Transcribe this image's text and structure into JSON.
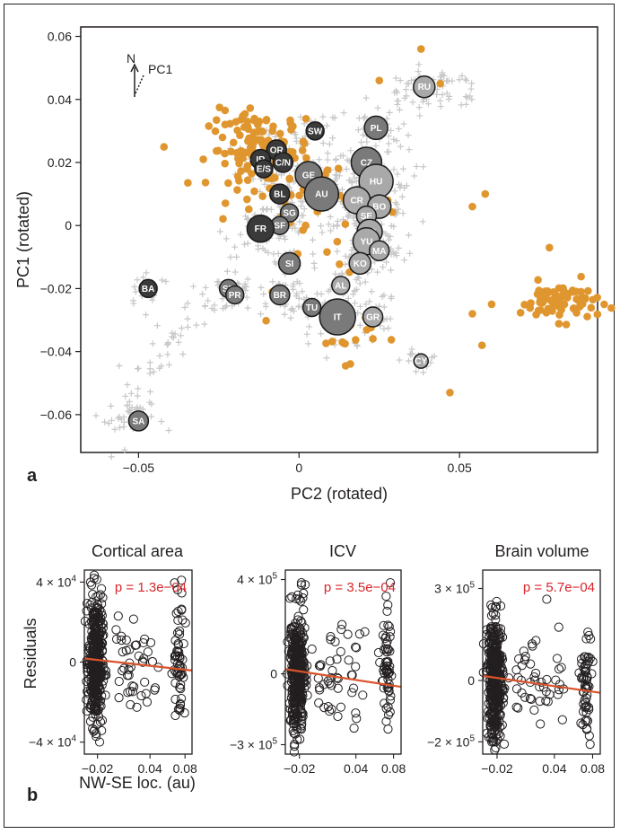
{
  "colors": {
    "cross": "#c8c8c8",
    "orange": "#e0962e",
    "axis": "#231f20",
    "fit_line": "#d9542b",
    "pvalue": "#d7262b",
    "pop_light": "#a9a9a9",
    "pop_mid": "#7a7a7a",
    "pop_dark": "#3a3a3a"
  },
  "panel_labels": {
    "a": "a",
    "b": "b"
  },
  "compass": {
    "north": "N",
    "pc1": "PC1"
  },
  "chart_data": [
    {
      "type": "scatter",
      "id": "pca",
      "xlabel": "PC2 (rotated)",
      "ylabel": "PC1 (rotated)",
      "xlim": [
        -0.068,
        0.093
      ],
      "ylim": [
        -0.072,
        0.063
      ],
      "xticks": [
        -0.05,
        0,
        0.05
      ],
      "xtick_labels": [
        "−0.05",
        "0",
        "0.05"
      ],
      "yticks": [
        -0.06,
        -0.04,
        -0.02,
        0,
        0.02,
        0.04,
        0.06
      ],
      "ytick_labels": [
        "−0.06",
        "−0.04",
        "−0.02",
        "0",
        "0.02",
        "0.04",
        "0.06"
      ],
      "grid": false,
      "legend": "none",
      "populations": [
        {
          "label": "RU",
          "x": 0.039,
          "y": 0.044,
          "size": 12,
          "shade": "light"
        },
        {
          "label": "SW",
          "x": 0.005,
          "y": 0.03,
          "size": 10,
          "shade": "dark"
        },
        {
          "label": "PL",
          "x": 0.024,
          "y": 0.031,
          "size": 13,
          "shade": "mid"
        },
        {
          "label": "OR",
          "x": -0.007,
          "y": 0.024,
          "size": 11,
          "shade": "dark"
        },
        {
          "label": "IR",
          "x": -0.012,
          "y": 0.021,
          "size": 11,
          "shade": "dark"
        },
        {
          "label": "E/S",
          "x": -0.011,
          "y": 0.018,
          "size": 10,
          "shade": "dark"
        },
        {
          "label": "C/N",
          "x": -0.005,
          "y": 0.02,
          "size": 11,
          "shade": "dark"
        },
        {
          "label": "GE",
          "x": 0.003,
          "y": 0.016,
          "size": 15,
          "shade": "mid"
        },
        {
          "label": "CZ",
          "x": 0.021,
          "y": 0.02,
          "size": 17,
          "shade": "mid"
        },
        {
          "label": "HU",
          "x": 0.024,
          "y": 0.014,
          "size": 19,
          "shade": "light"
        },
        {
          "label": "AU",
          "x": 0.007,
          "y": 0.01,
          "size": 19,
          "shade": "mid"
        },
        {
          "label": "CR",
          "x": 0.018,
          "y": 0.008,
          "size": 15,
          "shade": "light"
        },
        {
          "label": "BO",
          "x": 0.025,
          "y": 0.006,
          "size": 13,
          "shade": "light"
        },
        {
          "label": "BL",
          "x": -0.006,
          "y": 0.01,
          "size": 11,
          "shade": "dark"
        },
        {
          "label": "SG",
          "x": -0.003,
          "y": 0.004,
          "size": 10,
          "shade": "mid"
        },
        {
          "label": "SE",
          "x": 0.021,
          "y": 0.003,
          "size": 11,
          "shade": "light"
        },
        {
          "label": "SF",
          "x": -0.006,
          "y": 0.0,
          "size": 10,
          "shade": "mid"
        },
        {
          "label": "FR",
          "x": -0.012,
          "y": -0.001,
          "size": 15,
          "shade": "dark"
        },
        {
          "label": "RO",
          "x": 0.022,
          "y": -0.002,
          "size": 14,
          "shade": "light"
        },
        {
          "label": "YU",
          "x": 0.021,
          "y": -0.005,
          "size": 15,
          "shade": "light"
        },
        {
          "label": "MA",
          "x": 0.025,
          "y": -0.008,
          "size": 11,
          "shade": "light"
        },
        {
          "label": "SI",
          "x": -0.003,
          "y": -0.012,
          "size": 12,
          "shade": "mid"
        },
        {
          "label": "KO",
          "x": 0.019,
          "y": -0.012,
          "size": 12,
          "shade": "light"
        },
        {
          "label": "BA",
          "x": -0.047,
          "y": -0.02,
          "size": 10,
          "shade": "dark"
        },
        {
          "label": "SP",
          "x": -0.022,
          "y": -0.02,
          "size": 10,
          "shade": "mid"
        },
        {
          "label": "PR",
          "x": -0.02,
          "y": -0.022,
          "size": 10,
          "shade": "mid"
        },
        {
          "label": "BR",
          "x": -0.006,
          "y": -0.022,
          "size": 11,
          "shade": "mid"
        },
        {
          "label": "AL",
          "x": 0.013,
          "y": -0.019,
          "size": 10,
          "shade": "light"
        },
        {
          "label": "TU",
          "x": 0.004,
          "y": -0.026,
          "size": 10,
          "shade": "mid"
        },
        {
          "label": "IT",
          "x": 0.012,
          "y": -0.029,
          "size": 20,
          "shade": "mid"
        },
        {
          "label": "GR",
          "x": 0.023,
          "y": -0.029,
          "size": 11,
          "shade": "light"
        },
        {
          "label": "CY",
          "x": 0.038,
          "y": -0.043,
          "size": 8,
          "shade": "light"
        },
        {
          "label": "SA",
          "x": -0.05,
          "y": -0.062,
          "size": 11,
          "shade": "mid"
        }
      ]
    },
    {
      "type": "scatter",
      "id": "cortical",
      "title": "Cortical area",
      "xlabel": "NW-SE loc. (au)",
      "ylabel": "Residuals",
      "pvalue": "p = 1.3e−04",
      "xlim": [
        -0.035,
        0.088
      ],
      "ylim": [
        -46000,
        46000
      ],
      "xticks": [
        -0.02,
        0.04,
        0.08
      ],
      "xtick_labels": [
        "−0.02",
        "0.04",
        "0.08"
      ],
      "yticks": [
        40000,
        0,
        -40000
      ],
      "ytick_labels": [
        [
          "4 × 10",
          "4"
        ],
        [
          "0",
          ""
        ],
        [
          "−4 × 10",
          "4"
        ]
      ],
      "fit": {
        "x": [
          -0.035,
          0.088
        ],
        "y": [
          1800,
          -4200
        ]
      },
      "spread": 16000
    },
    {
      "type": "scatter",
      "id": "icv",
      "title": "ICV",
      "xlabel": "",
      "ylabel": "",
      "pvalue": "p = 3.5e−04",
      "xlim": [
        -0.035,
        0.088
      ],
      "ylim": [
        -340000,
        440000
      ],
      "xticks": [
        -0.02,
        0.04,
        0.08
      ],
      "xtick_labels": [
        "−0.02",
        "0.04",
        "0.08"
      ],
      "yticks": [
        400000,
        0,
        -300000
      ],
      "ytick_labels": [
        [
          "4 × 10",
          "5"
        ],
        [
          "0",
          ""
        ],
        [
          "−3 × 10",
          "5"
        ]
      ],
      "fit": {
        "x": [
          -0.035,
          0.088
        ],
        "y": [
          20000,
          -55000
        ]
      },
      "spread": 130000
    },
    {
      "type": "scatter",
      "id": "brain",
      "title": "Brain volume",
      "xlabel": "",
      "ylabel": "",
      "pvalue": "p = 5.7e−04",
      "xlim": [
        -0.035,
        0.088
      ],
      "ylim": [
        -240000,
        360000
      ],
      "xticks": [
        -0.02,
        0.04,
        0.08
      ],
      "xtick_labels": [
        "−0.02",
        "0.04",
        "0.08"
      ],
      "yticks": [
        300000,
        0,
        -200000
      ],
      "ytick_labels": [
        [
          "3 × 10",
          "5"
        ],
        [
          "0",
          ""
        ],
        [
          "−2 × 10",
          "5"
        ]
      ],
      "fit": {
        "x": [
          -0.035,
          0.088
        ],
        "y": [
          15000,
          -40000
        ]
      },
      "spread": 100000
    }
  ]
}
